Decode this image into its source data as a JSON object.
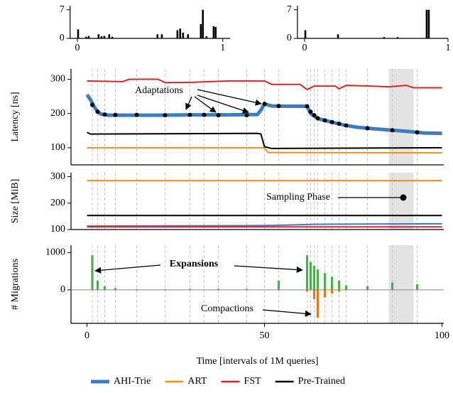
{
  "chart_data": [
    {
      "type": "bar",
      "color": "#000000",
      "x": [
        0.005,
        0.06,
        0.078,
        0.146,
        0.166,
        0.185,
        0.219,
        0.24,
        0.551,
        0.581,
        0.688,
        0.707,
        0.727,
        0.761,
        0.849,
        0.863,
        0.888,
        0.937,
        0.951
      ],
      "values": [
        2.2,
        0.4,
        0.6,
        1,
        0.5,
        0.6,
        1,
        0.4,
        1,
        1,
        2,
        2.4,
        1.4,
        1,
        3.5,
        7,
        0.5,
        3,
        2.8
      ],
      "xlim": [
        -0.05,
        1.05
      ],
      "ylim": [
        0,
        8
      ],
      "xticks": [
        0,
        1
      ],
      "yticks": [
        0,
        7
      ]
    },
    {
      "type": "bar",
      "color": "#000000",
      "x": [
        0.005,
        0.233,
        0.554,
        0.649,
        0.851,
        0.866
      ],
      "values": [
        2,
        1,
        0.3,
        0.3,
        7,
        7
      ],
      "xlim": [
        -0.05,
        1.0
      ],
      "ylim": [
        0,
        8
      ],
      "xticks": [
        0,
        1
      ],
      "yticks": [
        0,
        7
      ]
    },
    {
      "type": "line",
      "ylabel": "Latency [ns]",
      "xlim": [
        -4.5,
        100.5
      ],
      "ylim": [
        50,
        330
      ],
      "yticks": [
        100,
        200,
        300
      ],
      "sampling_phase": [
        85,
        92
      ],
      "series": [
        {
          "name": "AHI-Trie",
          "color": "#3a7dc0",
          "x": [
            0,
            1,
            2,
            3,
            4,
            6,
            10,
            20,
            30,
            40,
            48,
            49,
            50,
            52,
            56,
            62,
            63,
            65,
            67,
            70,
            73,
            76,
            80,
            85,
            90,
            95,
            100
          ],
          "values": [
            255,
            240,
            220,
            205,
            198,
            195,
            195,
            195,
            196,
            196,
            197,
            210,
            228,
            222,
            221,
            221,
            200,
            185,
            180,
            172,
            165,
            160,
            156,
            152,
            148,
            143,
            142
          ]
        },
        {
          "name": "ART",
          "color": "#f28e1c",
          "x": [
            0,
            50,
            51,
            100
          ],
          "values": [
            100,
            100,
            86,
            85
          ]
        },
        {
          "name": "FST",
          "color": "#d62728",
          "x": [
            0,
            10,
            12,
            20,
            22,
            30,
            40,
            50,
            52,
            60,
            62,
            64,
            70,
            71,
            73,
            80,
            85,
            90,
            92,
            100
          ],
          "values": [
            295,
            293,
            300,
            300,
            290,
            291,
            295,
            295,
            285,
            285,
            270,
            280,
            280,
            272,
            282,
            280,
            278,
            282,
            275,
            275
          ]
        },
        {
          "name": "Pre-Trained",
          "color": "#000000",
          "x": [
            0,
            1,
            48,
            49,
            50,
            52,
            100
          ],
          "values": [
            145,
            140,
            142,
            140,
            103,
            98,
            100
          ]
        }
      ],
      "adaptation_points": {
        "x": [
          1.5,
          3,
          5,
          8,
          14,
          22,
          29,
          33,
          37,
          45,
          50,
          54,
          62,
          63,
          64,
          65,
          67,
          69,
          71,
          73,
          79,
          86,
          93
        ],
        "values": [
          225,
          205,
          197,
          196,
          196,
          195,
          196,
          196,
          195,
          195,
          228,
          222,
          221,
          205,
          195,
          186,
          180,
          175,
          170,
          165,
          157,
          151,
          145
        ]
      },
      "annotations": [
        "Adaptations"
      ]
    },
    {
      "type": "line",
      "ylabel": "Size [MiB]",
      "xlim": [
        -4.5,
        100.5
      ],
      "ylim": [
        100,
        315
      ],
      "yticks": [
        100,
        200,
        300
      ],
      "series": [
        {
          "color": "#3a7dc0",
          "x": [
            0,
            50,
            65,
            100
          ],
          "values": [
            113,
            115,
            120,
            122
          ]
        },
        {
          "color": "#f28e1c",
          "x": [
            0,
            100
          ],
          "values": [
            285,
            285
          ]
        },
        {
          "color": "#d62728",
          "x": [
            0,
            100
          ],
          "values": [
            110,
            110
          ]
        },
        {
          "color": "#000000",
          "x": [
            0,
            100
          ],
          "values": [
            153,
            153
          ]
        }
      ],
      "annotations": [
        "Sampling Phase"
      ]
    },
    {
      "type": "bar",
      "ylabel": "# Migrations",
      "xlabel": "Time [intervals of 1M queries]",
      "xlim": [
        -4.5,
        100.5
      ],
      "ylim": [
        -900,
        1200
      ],
      "xticks": [
        0,
        50,
        100
      ],
      "yticks": [
        0,
        1000
      ],
      "expansions": {
        "color": "#4daf4a",
        "x": [
          1.5,
          3,
          5,
          8,
          14,
          22,
          29,
          37,
          45,
          54,
          62,
          63,
          64,
          65,
          67,
          69,
          71,
          73,
          79,
          86,
          93
        ],
        "values": [
          930,
          250,
          100,
          50,
          20,
          20,
          30,
          30,
          30,
          250,
          930,
          750,
          650,
          550,
          450,
          350,
          250,
          120,
          100,
          200,
          150
        ]
      },
      "compactions": {
        "color": "#e07b1a",
        "x": [
          62,
          64,
          65,
          67,
          69,
          71
        ],
        "values": [
          -50,
          -250,
          -750,
          -200,
          -100,
          -50
        ]
      },
      "annotations": [
        "Expansions",
        "Compactions"
      ]
    }
  ]
}
